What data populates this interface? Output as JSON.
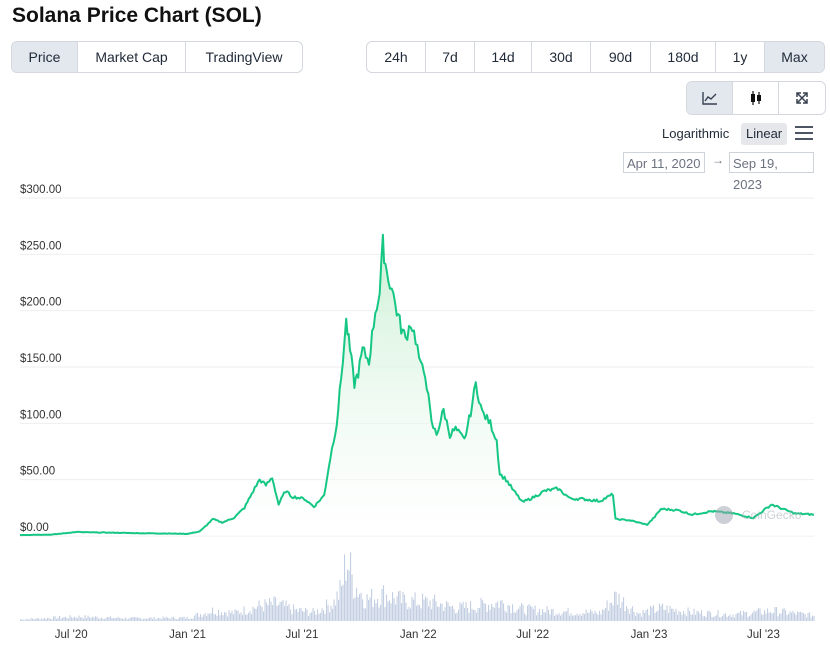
{
  "title": "Solana Price Chart (SOL)",
  "tabs": [
    {
      "label": "Price",
      "active": true
    },
    {
      "label": "Market Cap",
      "active": false
    },
    {
      "label": "TradingView",
      "active": false
    }
  ],
  "ranges": [
    {
      "label": "24h",
      "active": false
    },
    {
      "label": "7d",
      "active": false
    },
    {
      "label": "14d",
      "active": false
    },
    {
      "label": "30d",
      "active": false
    },
    {
      "label": "90d",
      "active": false
    },
    {
      "label": "180d",
      "active": false
    },
    {
      "label": "1y",
      "active": false
    },
    {
      "label": "Max",
      "active": true
    }
  ],
  "chart_tools": [
    {
      "icon": "line-chart-icon",
      "active": true
    },
    {
      "icon": "candlestick-icon",
      "active": false
    },
    {
      "icon": "expand-icon",
      "active": false
    }
  ],
  "scale": {
    "logarithmic": "Logarithmic",
    "linear": "Linear",
    "selected": "Linear"
  },
  "date_range": {
    "from": "Apr 11, 2020",
    "arrow": "→",
    "to": "Sep 19, 2023"
  },
  "watermark": "CoinGecko",
  "colors": {
    "line": "#16c784",
    "area_top": "#c9efd3",
    "volume": "#c3cfe2",
    "active_button": "#e3e8ef"
  },
  "chart_data": {
    "type": "area",
    "x_start": "2020-04-11",
    "x_end": "2023-09-19",
    "y_tick_labels": [
      "$0.00",
      "$50.00",
      "$100.00",
      "$150.00",
      "$200.00",
      "$250.00",
      "$300.00"
    ],
    "y_ticks": [
      0,
      50,
      100,
      150,
      200,
      250,
      300
    ],
    "ylim": [
      0,
      300
    ],
    "x_tick_labels": [
      "Jul '20",
      "Jan '21",
      "Jul '21",
      "Jan '22",
      "Jul '22",
      "Jan '23",
      "Jul '23"
    ],
    "x_ticks": [
      "2020-07-01",
      "2021-01-01",
      "2021-07-01",
      "2022-01-01",
      "2022-07-01",
      "2023-01-01",
      "2023-07-01"
    ],
    "grid": true,
    "series": [
      {
        "points": [
          [
            "2020-04-11",
            0.9
          ],
          [
            "2020-06-01",
            1.3
          ],
          [
            "2020-07-10",
            3.6
          ],
          [
            "2020-08-01",
            3.2
          ],
          [
            "2020-09-01",
            3.0
          ],
          [
            "2020-10-15",
            2.5
          ],
          [
            "2020-12-01",
            2.2
          ],
          [
            "2021-01-01",
            1.9
          ],
          [
            "2021-01-20",
            4.0
          ],
          [
            "2021-02-01",
            10.0
          ],
          [
            "2021-02-10",
            15.0
          ],
          [
            "2021-02-25",
            12.0
          ],
          [
            "2021-03-15",
            16.0
          ],
          [
            "2021-04-01",
            25.0
          ],
          [
            "2021-04-15",
            40.0
          ],
          [
            "2021-04-25",
            50.0
          ],
          [
            "2021-05-05",
            45.0
          ],
          [
            "2021-05-15",
            52.0
          ],
          [
            "2021-05-25",
            28.0
          ],
          [
            "2021-06-05",
            40.0
          ],
          [
            "2021-06-15",
            35.0
          ],
          [
            "2021-06-25",
            34.0
          ],
          [
            "2021-07-05",
            33.0
          ],
          [
            "2021-07-20",
            26.0
          ],
          [
            "2021-08-05",
            36.0
          ],
          [
            "2021-08-15",
            70.0
          ],
          [
            "2021-08-25",
            100.0
          ],
          [
            "2021-09-01",
            140.0
          ],
          [
            "2021-09-09",
            190.0
          ],
          [
            "2021-09-15",
            165.0
          ],
          [
            "2021-09-22",
            135.0
          ],
          [
            "2021-09-28",
            145.0
          ],
          [
            "2021-10-05",
            165.0
          ],
          [
            "2021-10-15",
            155.0
          ],
          [
            "2021-10-25",
            200.0
          ],
          [
            "2021-11-01",
            215.0
          ],
          [
            "2021-11-06",
            259.0
          ],
          [
            "2021-11-12",
            235.0
          ],
          [
            "2021-11-20",
            220.0
          ],
          [
            "2021-11-28",
            200.0
          ],
          [
            "2021-12-05",
            185.0
          ],
          [
            "2021-12-12",
            175.0
          ],
          [
            "2021-12-20",
            190.0
          ],
          [
            "2021-12-28",
            175.0
          ],
          [
            "2022-01-05",
            150.0
          ],
          [
            "2022-01-12",
            145.0
          ],
          [
            "2022-01-22",
            100.0
          ],
          [
            "2022-01-30",
            90.0
          ],
          [
            "2022-02-10",
            112.0
          ],
          [
            "2022-02-20",
            90.0
          ],
          [
            "2022-03-01",
            95.0
          ],
          [
            "2022-03-15",
            85.0
          ],
          [
            "2022-03-25",
            110.0
          ],
          [
            "2022-04-02",
            135.0
          ],
          [
            "2022-04-12",
            110.0
          ],
          [
            "2022-04-25",
            100.0
          ],
          [
            "2022-05-05",
            85.0
          ],
          [
            "2022-05-10",
            55.0
          ],
          [
            "2022-05-20",
            50.0
          ],
          [
            "2022-06-01",
            40.0
          ],
          [
            "2022-06-15",
            30.0
          ],
          [
            "2022-07-01",
            34.0
          ],
          [
            "2022-07-20",
            40.0
          ],
          [
            "2022-08-10",
            42.0
          ],
          [
            "2022-08-30",
            33.0
          ],
          [
            "2022-09-15",
            33.0
          ],
          [
            "2022-10-15",
            31.0
          ],
          [
            "2022-11-05",
            37.0
          ],
          [
            "2022-11-09",
            15.0
          ],
          [
            "2022-12-01",
            14.0
          ],
          [
            "2022-12-29",
            10.0
          ],
          [
            "2023-01-10",
            17.0
          ],
          [
            "2023-01-20",
            24.0
          ],
          [
            "2023-02-15",
            23.0
          ],
          [
            "2023-03-10",
            19.0
          ],
          [
            "2023-04-10",
            22.0
          ],
          [
            "2023-05-15",
            20.0
          ],
          [
            "2023-06-15",
            16.0
          ],
          [
            "2023-07-14",
            28.0
          ],
          [
            "2023-08-05",
            23.0
          ],
          [
            "2023-08-20",
            20.0
          ],
          [
            "2023-09-19",
            19.0
          ]
        ]
      }
    ],
    "volume": [
      [
        "2020-04-11",
        0.3
      ],
      [
        "2020-07-10",
        0.8
      ],
      [
        "2020-10-01",
        0.5
      ],
      [
        "2021-01-01",
        0.6
      ],
      [
        "2021-02-10",
        2.0
      ],
      [
        "2021-03-15",
        1.5
      ],
      [
        "2021-04-25",
        2.8
      ],
      [
        "2021-05-20",
        3.2
      ],
      [
        "2021-06-20",
        2.0
      ],
      [
        "2021-07-20",
        1.6
      ],
      [
        "2021-08-20",
        3.5
      ],
      [
        "2021-09-01",
        6.0
      ],
      [
        "2021-09-09",
        12.0
      ],
      [
        "2021-09-20",
        7.0
      ],
      [
        "2021-10-10",
        4.0
      ],
      [
        "2021-11-06",
        5.0
      ],
      [
        "2021-12-05",
        3.8
      ],
      [
        "2022-01-22",
        3.5
      ],
      [
        "2022-03-01",
        2.4
      ],
      [
        "2022-04-02",
        2.8
      ],
      [
        "2022-05-10",
        3.5
      ],
      [
        "2022-06-15",
        2.2
      ],
      [
        "2022-08-10",
        1.8
      ],
      [
        "2022-10-15",
        1.5
      ],
      [
        "2022-11-09",
        4.6
      ],
      [
        "2022-12-15",
        1.4
      ],
      [
        "2023-01-20",
        2.4
      ],
      [
        "2023-03-10",
        1.6
      ],
      [
        "2023-05-15",
        1.2
      ],
      [
        "2023-07-14",
        1.9
      ],
      [
        "2023-09-19",
        1.0
      ]
    ]
  }
}
